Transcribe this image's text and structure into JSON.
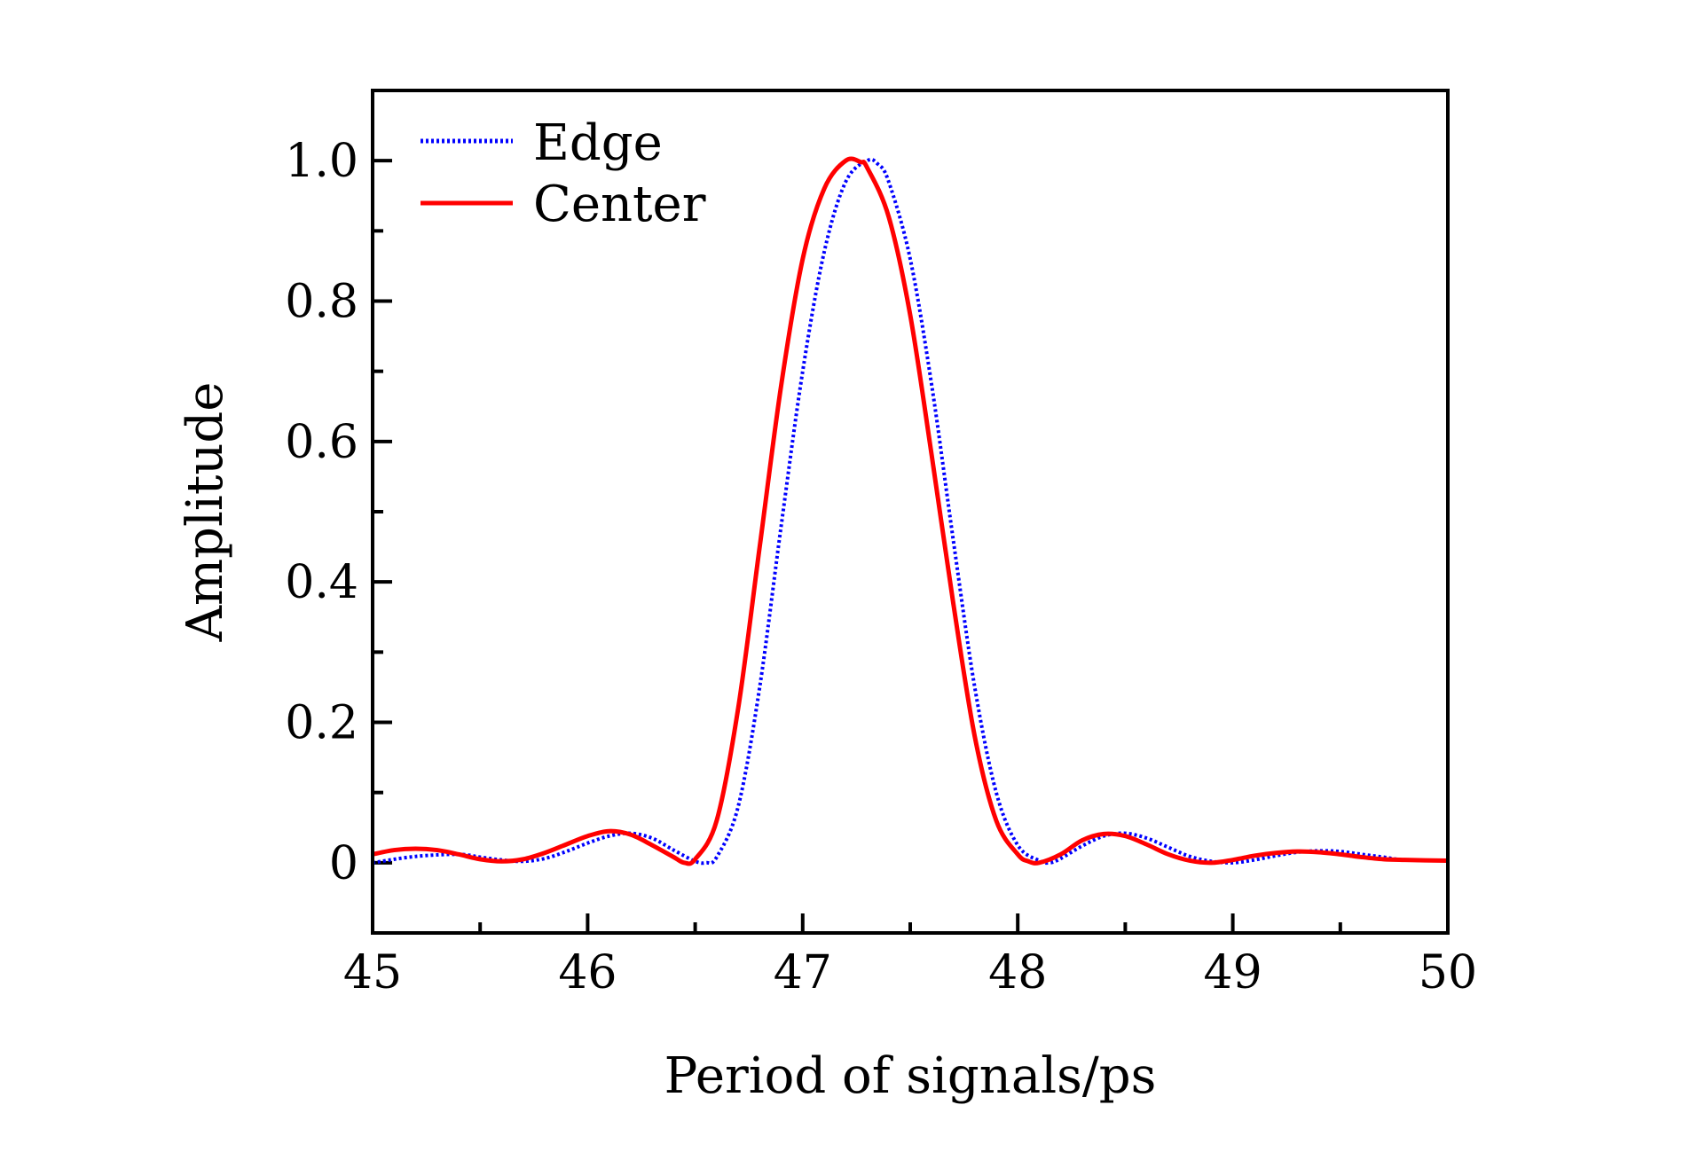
{
  "chart_data": {
    "type": "line",
    "title": "",
    "xlabel": "Period of signals/ps",
    "ylabel": "Amplitude",
    "xlim": [
      45,
      50
    ],
    "ylim": [
      -0.1,
      1.1
    ],
    "grid": false,
    "legend_position": "top-left",
    "x_ticks": [
      45,
      46,
      47,
      48,
      49,
      50
    ],
    "x_tick_labels": [
      "45",
      "46",
      "47",
      "48",
      "49",
      "50"
    ],
    "x_minor_ticks": [
      45.5,
      46.5,
      47.5,
      48.5,
      49.5
    ],
    "y_ticks": [
      0,
      0.2,
      0.4,
      0.6,
      0.8,
      1.0
    ],
    "y_tick_labels": [
      "0",
      "0.2",
      "0.4",
      "0.6",
      "0.8",
      "1.0"
    ],
    "y_minor_ticks": [
      -0.1,
      0.1,
      0.3,
      0.5,
      0.7,
      0.9
    ],
    "series": [
      {
        "name": "Edge",
        "color": "#0000ff",
        "style": "dotted",
        "x": [
          45.0,
          45.2,
          45.4,
          45.5,
          45.6,
          45.7,
          45.8,
          45.9,
          46.0,
          46.1,
          46.2,
          46.3,
          46.4,
          46.5,
          46.55,
          46.6,
          46.7,
          46.8,
          46.9,
          47.0,
          47.1,
          47.2,
          47.3,
          47.35,
          47.4,
          47.5,
          47.6,
          47.7,
          47.8,
          47.9,
          48.0,
          48.1,
          48.15,
          48.2,
          48.3,
          48.4,
          48.5,
          48.6,
          48.7,
          48.8,
          48.9,
          49.0,
          49.1,
          49.2,
          49.3,
          49.4,
          49.5,
          49.6,
          49.7,
          49.8,
          50.0
        ],
        "y": [
          0.0,
          0.009,
          0.012,
          0.008,
          0.004,
          0.002,
          0.006,
          0.016,
          0.028,
          0.038,
          0.042,
          0.035,
          0.018,
          0.002,
          0.0,
          0.008,
          0.08,
          0.25,
          0.48,
          0.7,
          0.87,
          0.97,
          1.0,
          0.995,
          0.97,
          0.86,
          0.68,
          0.46,
          0.25,
          0.1,
          0.025,
          0.003,
          0.0,
          0.006,
          0.024,
          0.038,
          0.042,
          0.035,
          0.022,
          0.009,
          0.002,
          0.0,
          0.004,
          0.01,
          0.015,
          0.017,
          0.016,
          0.012,
          0.008,
          0.004,
          0.003
        ]
      },
      {
        "name": "Center",
        "color": "#ff0000",
        "style": "solid",
        "x": [
          45.0,
          45.1,
          45.2,
          45.3,
          45.4,
          45.5,
          45.6,
          45.7,
          45.8,
          45.9,
          46.0,
          46.1,
          46.2,
          46.3,
          46.4,
          46.45,
          46.5,
          46.6,
          46.7,
          46.8,
          46.9,
          47.0,
          47.1,
          47.2,
          47.27,
          47.3,
          47.4,
          47.5,
          47.6,
          47.7,
          47.8,
          47.9,
          48.0,
          48.05,
          48.1,
          48.2,
          48.3,
          48.4,
          48.5,
          48.6,
          48.7,
          48.8,
          48.9,
          49.0,
          49.1,
          49.2,
          49.3,
          49.4,
          49.5,
          49.6,
          49.7,
          49.8,
          50.0
        ],
        "y": [
          0.012,
          0.018,
          0.02,
          0.018,
          0.012,
          0.005,
          0.002,
          0.005,
          0.014,
          0.026,
          0.038,
          0.045,
          0.04,
          0.025,
          0.008,
          0.0,
          0.005,
          0.06,
          0.22,
          0.45,
          0.68,
          0.86,
          0.96,
          1.0,
          0.998,
          0.99,
          0.92,
          0.78,
          0.58,
          0.37,
          0.18,
          0.06,
          0.012,
          0.002,
          0.0,
          0.012,
          0.032,
          0.041,
          0.038,
          0.026,
          0.012,
          0.003,
          0.0,
          0.004,
          0.01,
          0.014,
          0.016,
          0.015,
          0.012,
          0.008,
          0.005,
          0.004,
          0.003
        ]
      }
    ]
  }
}
